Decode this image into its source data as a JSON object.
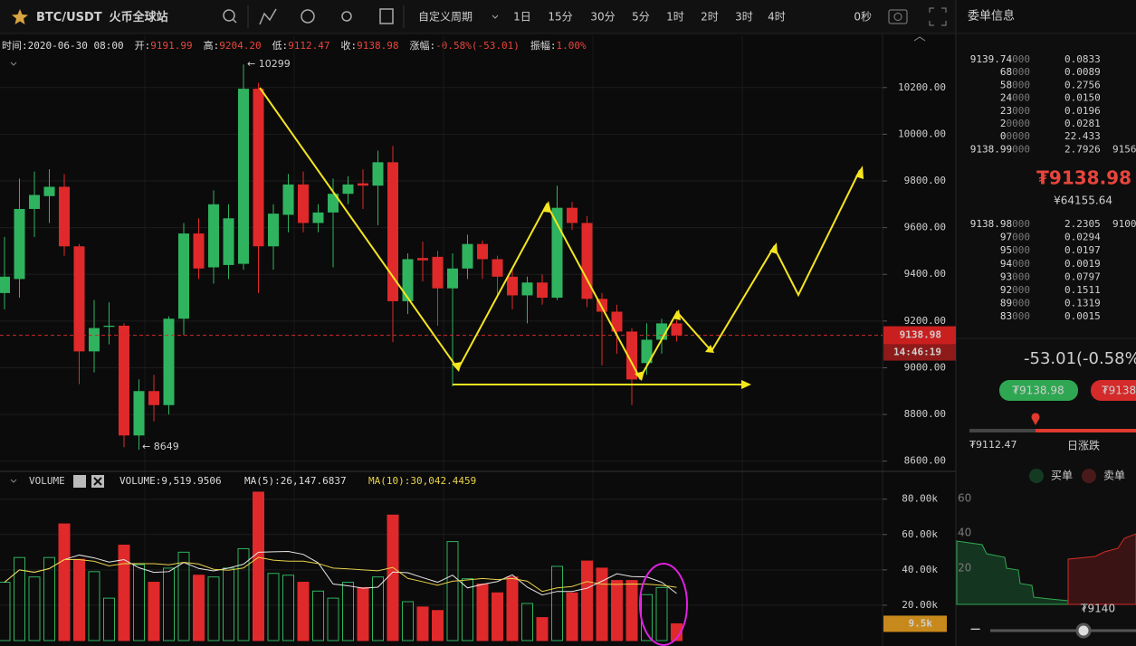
{
  "header": {
    "pair": "BTC/USDT",
    "exchange": "火币全球站",
    "period_menu": "自定义周期",
    "periods": [
      "1日",
      "15分",
      "30分",
      "5分",
      "1时",
      "2时",
      "3时",
      "4时"
    ],
    "countdown_setting": "0秒"
  },
  "info": [
    {
      "label": "时间:",
      "value": "2020-06-30 08:00"
    },
    {
      "label": "开:",
      "value": "9191.99"
    },
    {
      "label": "高:",
      "value": "9204.20"
    },
    {
      "label": "低:",
      "value": "9112.47"
    },
    {
      "label": "收:",
      "value": "9138.98"
    },
    {
      "label": "涨幅:",
      "value": "-0.58%(-53.01)"
    },
    {
      "label": "振幅:",
      "value": "1.00%"
    }
  ],
  "annotations": {
    "high": "← 10299",
    "low": "← 8649"
  },
  "chart_data": [
    {
      "type": "candlestick",
      "open": [
        9320,
        9380,
        9680,
        9735,
        9775,
        9520,
        9070,
        9175,
        9180,
        8710,
        8900,
        8840,
        9210,
        9575,
        9430,
        9440,
        9445,
        10195,
        9520,
        9655,
        9785,
        9620,
        9665,
        9745,
        9790,
        9780,
        9880,
        9285,
        9470,
        9475,
        9340,
        9425,
        9530,
        9465,
        9390,
        9310,
        9365,
        9300,
        9685,
        9620,
        9295,
        9240,
        9155,
        9020,
        9120,
        9190
      ],
      "high": [
        9560,
        9810,
        9840,
        9850,
        9830,
        9530,
        9290,
        9280,
        9190,
        8950,
        8970,
        9220,
        9620,
        9640,
        9760,
        9700,
        10299,
        10220,
        9700,
        9830,
        9840,
        9700,
        9810,
        9820,
        9850,
        9930,
        9950,
        9490,
        9540,
        9500,
        9490,
        9570,
        9545,
        9480,
        9420,
        9390,
        9400,
        9780,
        9710,
        9650,
        9320,
        9270,
        9170,
        9190,
        9210,
        9204
      ],
      "low": [
        9250,
        9300,
        9560,
        9620,
        9480,
        8930,
        8980,
        9100,
        8660,
        8649,
        8770,
        8800,
        9140,
        9380,
        9360,
        9380,
        9420,
        9320,
        9420,
        9580,
        9580,
        9580,
        9430,
        9700,
        9680,
        9610,
        9110,
        9230,
        9370,
        9180,
        8920,
        9380,
        9380,
        9310,
        9250,
        9190,
        9270,
        9290,
        9590,
        9260,
        9010,
        9060,
        8840,
        8970,
        9060,
        9112
      ],
      "close": [
        9390,
        9680,
        9740,
        9775,
        9520,
        9070,
        9170,
        9180,
        8710,
        8900,
        8840,
        9210,
        9575,
        9425,
        9700,
        9640,
        10195,
        9520,
        9660,
        9785,
        9620,
        9665,
        9745,
        9785,
        9780,
        9880,
        9285,
        9465,
        9460,
        9340,
        9425,
        9530,
        9465,
        9390,
        9310,
        9365,
        9300,
        9685,
        9620,
        9295,
        9240,
        9155,
        8950,
        9120,
        9190,
        9139
      ],
      "up_color": "#2fb35f",
      "down_color": "#e0292a",
      "ylim": [
        8560,
        10420
      ],
      "yticks": [
        {
          "value": 10200,
          "label": "10200.00"
        },
        {
          "value": 10000,
          "label": "10000.00"
        },
        {
          "value": 9800,
          "label": "9800.00"
        },
        {
          "value": 9600,
          "label": "9600.00"
        },
        {
          "value": 9400,
          "label": "9400.00"
        },
        {
          "value": 9200,
          "label": "9200.00"
        },
        {
          "value": 9000,
          "label": "9000.00"
        },
        {
          "value": 8800,
          "label": "8800.00"
        },
        {
          "value": 8600,
          "label": "8600.00"
        }
      ],
      "last_price": 9138.98,
      "countdown": "14:46:19",
      "grid": true
    },
    {
      "type": "bar",
      "title": "VOLUME",
      "readout": [
        "VOLUME:9,519.9506",
        "MA(5):26,147.6837",
        "MA(10):30,042.4459"
      ],
      "values": [
        33000,
        47000,
        36000,
        47000,
        66000,
        46000,
        39000,
        24000,
        54000,
        43000,
        33000,
        41000,
        50000,
        37000,
        36000,
        41000,
        52000,
        84000,
        38000,
        37000,
        33000,
        28000,
        24000,
        33000,
        30000,
        36000,
        71000,
        22000,
        19000,
        17000,
        56000,
        35000,
        32000,
        27000,
        36000,
        21000,
        13000,
        42000,
        27000,
        45000,
        41000,
        34000,
        34000,
        26000,
        30000,
        9500
      ],
      "last_label": "9.5k",
      "ylim": [
        0,
        86000
      ],
      "yticks": [
        {
          "value": 80000,
          "label": "80.00k"
        },
        {
          "value": 60000,
          "label": "60.00k"
        },
        {
          "value": 40000,
          "label": "40.00k"
        },
        {
          "value": 20000,
          "label": "20.00k"
        }
      ]
    }
  ],
  "orderbook": {
    "title": "委单信息",
    "asks": [
      {
        "p": "9139.74",
        "t": "000",
        "a": "0.0833"
      },
      {
        "p": "68",
        "t": "000",
        "a": "0.0089"
      },
      {
        "p": "58",
        "t": "000",
        "a": "0.2756"
      },
      {
        "p": "24",
        "t": "000",
        "a": "0.0150"
      },
      {
        "p": "23",
        "t": "000",
        "a": "0.0196"
      },
      {
        "p": "2",
        "t": "0000",
        "a": "0.0281"
      },
      {
        "p": "0",
        "t": "0000",
        "a": "22.433"
      },
      {
        "p": "9138.99",
        "t": "000",
        "a": "2.7926",
        "x": "9156"
      }
    ],
    "price": "₮9138.98",
    "cny": "¥64155.64",
    "bids": [
      {
        "p": "9138.98",
        "t": "000",
        "a": "2.2305",
        "x": "9100"
      },
      {
        "p": "97",
        "t": "000",
        "a": "0.0294"
      },
      {
        "p": "95",
        "t": "000",
        "a": "0.0197"
      },
      {
        "p": "94",
        "t": "000",
        "a": "0.0019"
      },
      {
        "p": "93",
        "t": "000",
        "a": "0.0797"
      },
      {
        "p": "92",
        "t": "000",
        "a": "0.1511"
      },
      {
        "p": "89",
        "t": "000",
        "a": "0.1319"
      },
      {
        "p": "83",
        "t": "000",
        "a": "0.0015"
      }
    ],
    "change": "-53.01(-0.58%",
    "buy_btn": "₮9138.98",
    "sell_btn": "₮9138",
    "day_low": "₮9112.47",
    "day_label": "日涨跌",
    "legend": [
      "买单",
      "卖单"
    ],
    "depth_ticks": [
      "60",
      "40",
      "20"
    ],
    "depth_price": "₮9140",
    "zoom_out": "−"
  }
}
